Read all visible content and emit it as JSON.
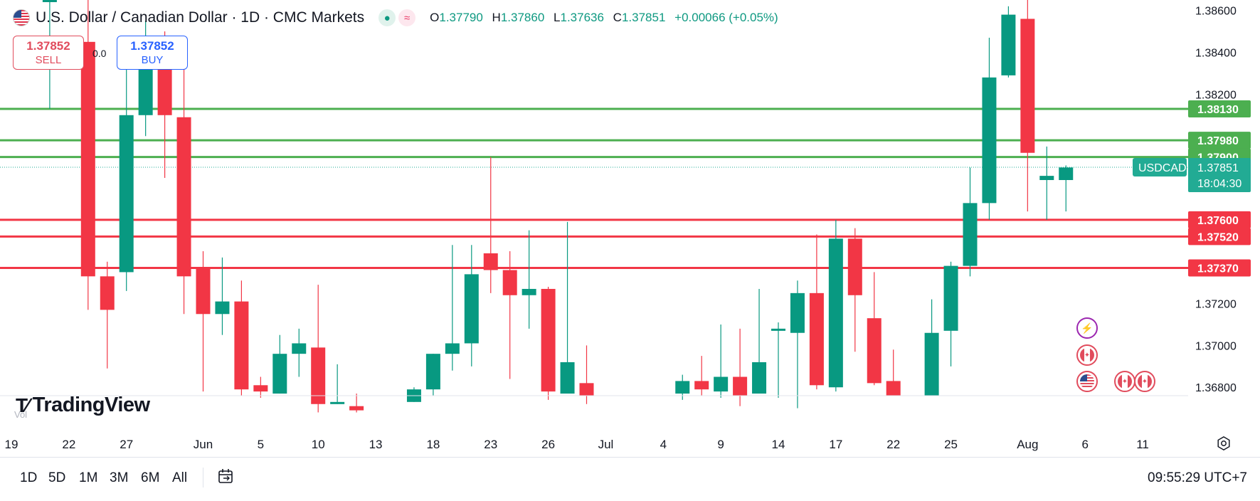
{
  "header": {
    "title": "U.S. Dollar / Canadian Dollar · 1D · CMC Markets",
    "ohlc": [
      {
        "k": "O",
        "v": "1.37790"
      },
      {
        "k": "H",
        "v": "1.37860"
      },
      {
        "k": "L",
        "v": "1.37636"
      },
      {
        "k": "C",
        "v": "1.37851"
      }
    ],
    "change": "+0.00066 (+0.05%)"
  },
  "trade": {
    "sell_price": "1.37852",
    "sell_label": "SELL",
    "buy_price": "1.37852",
    "buy_label": "BUY",
    "spread": "0.0"
  },
  "branding": {
    "logo": "TradingView",
    "vol_label": "Vol"
  },
  "timeframes": [
    "1D",
    "5D",
    "1M",
    "3M",
    "6M",
    "All"
  ],
  "clock": "09:55:29 UTC+7",
  "colors": {
    "up": "#089981",
    "down": "#f23645",
    "support": "#f23645",
    "resistance": "#4caf50",
    "label_green": "#22ab94"
  },
  "icons": [
    "calendar-icon",
    "settings-icon",
    "lightning-icon",
    "canada-flag-icon",
    "us-flag-icon"
  ],
  "chart_data": {
    "type": "candlestick",
    "symbol": "USDCAD",
    "last_price": "1.37851",
    "countdown": "18:04:30",
    "ylim": [
      1.3676,
      1.3865
    ],
    "y_ticks": [
      "1.38600",
      "1.38400",
      "1.38200",
      "1.37200",
      "1.37000",
      "1.36800"
    ],
    "x_ticks": [
      {
        "i": 0,
        "label": "19"
      },
      {
        "i": 3,
        "label": "22"
      },
      {
        "i": 6,
        "label": "27"
      },
      {
        "i": 10,
        "label": "Jun"
      },
      {
        "i": 13,
        "label": "5"
      },
      {
        "i": 16,
        "label": "10"
      },
      {
        "i": 19,
        "label": "13"
      },
      {
        "i": 22,
        "label": "18"
      },
      {
        "i": 25,
        "label": "23"
      },
      {
        "i": 28,
        "label": "26"
      },
      {
        "i": 31,
        "label": "Jul"
      },
      {
        "i": 34,
        "label": "4"
      },
      {
        "i": 37,
        "label": "9"
      },
      {
        "i": 40,
        "label": "14"
      },
      {
        "i": 43,
        "label": "17"
      },
      {
        "i": 46,
        "label": "22"
      },
      {
        "i": 49,
        "label": "25"
      },
      {
        "i": 53,
        "label": "Aug"
      },
      {
        "i": 56,
        "label": "6"
      },
      {
        "i": 59,
        "label": "11"
      }
    ],
    "levels": [
      {
        "value": 1.3813,
        "label": "1.38130",
        "kind": "resistance"
      },
      {
        "value": 1.3798,
        "label": "1.37980",
        "kind": "resistance"
      },
      {
        "value": 1.379,
        "label": "1.37900",
        "kind": "resistance"
      },
      {
        "value": 1.376,
        "label": "1.37600",
        "kind": "support"
      },
      {
        "value": 1.3752,
        "label": "1.37520",
        "kind": "support"
      },
      {
        "value": 1.3737,
        "label": "1.37370",
        "kind": "support"
      }
    ],
    "candles": [
      {
        "i": 2,
        "o": 1.3865,
        "h": 1.3865,
        "l": 1.3813,
        "c": 1.3865
      },
      {
        "i": 4,
        "o": 1.3845,
        "h": 1.3865,
        "l": 1.3717,
        "c": 1.3733
      },
      {
        "i": 5,
        "o": 1.3733,
        "h": 1.374,
        "l": 1.3689,
        "c": 1.3717
      },
      {
        "i": 6,
        "o": 1.3735,
        "h": 1.3836,
        "l": 1.3726,
        "c": 1.381
      },
      {
        "i": 7,
        "o": 1.381,
        "h": 1.3855,
        "l": 1.38,
        "c": 1.3845
      },
      {
        "i": 8,
        "o": 1.3835,
        "h": 1.385,
        "l": 1.378,
        "c": 1.381
      },
      {
        "i": 9,
        "o": 1.3809,
        "h": 1.3833,
        "l": 1.3715,
        "c": 1.3733
      },
      {
        "i": 10,
        "o": 1.3737,
        "h": 1.3745,
        "l": 1.3678,
        "c": 1.3715
      },
      {
        "i": 11,
        "o": 1.3715,
        "h": 1.3742,
        "l": 1.3705,
        "c": 1.3721
      },
      {
        "i": 12,
        "o": 1.3721,
        "h": 1.3731,
        "l": 1.3676,
        "c": 1.3679
      },
      {
        "i": 13,
        "o": 1.3681,
        "h": 1.3685,
        "l": 1.3675,
        "c": 1.3678
      },
      {
        "i": 14,
        "o": 1.3677,
        "h": 1.3705,
        "l": 1.3677,
        "c": 1.3696
      },
      {
        "i": 15,
        "o": 1.3696,
        "h": 1.3708,
        "l": 1.3685,
        "c": 1.3701
      },
      {
        "i": 16,
        "o": 1.3699,
        "h": 1.3729,
        "l": 1.3668,
        "c": 1.3672
      },
      {
        "i": 17,
        "o": 1.3672,
        "h": 1.3691,
        "l": 1.3672,
        "c": 1.3673
      },
      {
        "i": 18,
        "o": 1.3671,
        "h": 1.3677,
        "l": 1.3668,
        "c": 1.3669
      },
      {
        "i": 21,
        "o": 1.3673,
        "h": 1.368,
        "l": 1.3673,
        "c": 1.3679
      },
      {
        "i": 22,
        "o": 1.3679,
        "h": 1.3696,
        "l": 1.3676,
        "c": 1.3696
      },
      {
        "i": 23,
        "o": 1.3696,
        "h": 1.3748,
        "l": 1.3688,
        "c": 1.3701
      },
      {
        "i": 24,
        "o": 1.3701,
        "h": 1.3748,
        "l": 1.369,
        "c": 1.3734
      },
      {
        "i": 25,
        "o": 1.3744,
        "h": 1.379,
        "l": 1.3725,
        "c": 1.3736
      },
      {
        "i": 26,
        "o": 1.3736,
        "h": 1.3745,
        "l": 1.3684,
        "c": 1.3724
      },
      {
        "i": 27,
        "o": 1.3724,
        "h": 1.3755,
        "l": 1.3708,
        "c": 1.3727
      },
      {
        "i": 28,
        "o": 1.3727,
        "h": 1.3728,
        "l": 1.3674,
        "c": 1.3678
      },
      {
        "i": 29,
        "o": 1.3677,
        "h": 1.3759,
        "l": 1.3677,
        "c": 1.3692
      },
      {
        "i": 30,
        "o": 1.3682,
        "h": 1.37,
        "l": 1.3672,
        "c": 1.3676
      },
      {
        "i": 35,
        "o": 1.3677,
        "h": 1.3686,
        "l": 1.3674,
        "c": 1.3683
      },
      {
        "i": 36,
        "o": 1.3683,
        "h": 1.3695,
        "l": 1.3676,
        "c": 1.3679
      },
      {
        "i": 37,
        "o": 1.3678,
        "h": 1.371,
        "l": 1.3675,
        "c": 1.3685
      },
      {
        "i": 38,
        "o": 1.3685,
        "h": 1.3708,
        "l": 1.3671,
        "c": 1.3676
      },
      {
        "i": 39,
        "o": 1.3677,
        "h": 1.3727,
        "l": 1.3677,
        "c": 1.3692
      },
      {
        "i": 40,
        "o": 1.3708,
        "h": 1.3711,
        "l": 1.3675,
        "c": 1.3708
      },
      {
        "i": 41,
        "o": 1.3706,
        "h": 1.3731,
        "l": 1.367,
        "c": 1.3725
      },
      {
        "i": 42,
        "o": 1.3725,
        "h": 1.3753,
        "l": 1.3679,
        "c": 1.3681
      },
      {
        "i": 43,
        "o": 1.368,
        "h": 1.376,
        "l": 1.3678,
        "c": 1.3751
      },
      {
        "i": 44,
        "o": 1.3751,
        "h": 1.3756,
        "l": 1.3697,
        "c": 1.3724
      },
      {
        "i": 45,
        "o": 1.3713,
        "h": 1.3735,
        "l": 1.3681,
        "c": 1.3682
      },
      {
        "i": 46,
        "o": 1.3683,
        "h": 1.3698,
        "l": 1.3676,
        "c": 1.3676
      },
      {
        "i": 48,
        "o": 1.3676,
        "h": 1.3722,
        "l": 1.3676,
        "c": 1.3706
      },
      {
        "i": 49,
        "o": 1.3707,
        "h": 1.374,
        "l": 1.369,
        "c": 1.3738
      },
      {
        "i": 50,
        "o": 1.3738,
        "h": 1.3785,
        "l": 1.3733,
        "c": 1.3768
      },
      {
        "i": 51,
        "o": 1.3768,
        "h": 1.3847,
        "l": 1.376,
        "c": 1.3828
      },
      {
        "i": 52,
        "o": 1.3829,
        "h": 1.3862,
        "l": 1.3828,
        "c": 1.3858
      },
      {
        "i": 53,
        "o": 1.3856,
        "h": 1.3869,
        "l": 1.3764,
        "c": 1.3792
      },
      {
        "i": 54,
        "o": 1.3779,
        "h": 1.3795,
        "l": 1.376,
        "c": 1.3781
      },
      {
        "i": 55,
        "o": 1.3779,
        "h": 1.3786,
        "l": 1.3764,
        "c": 1.3785
      }
    ]
  }
}
